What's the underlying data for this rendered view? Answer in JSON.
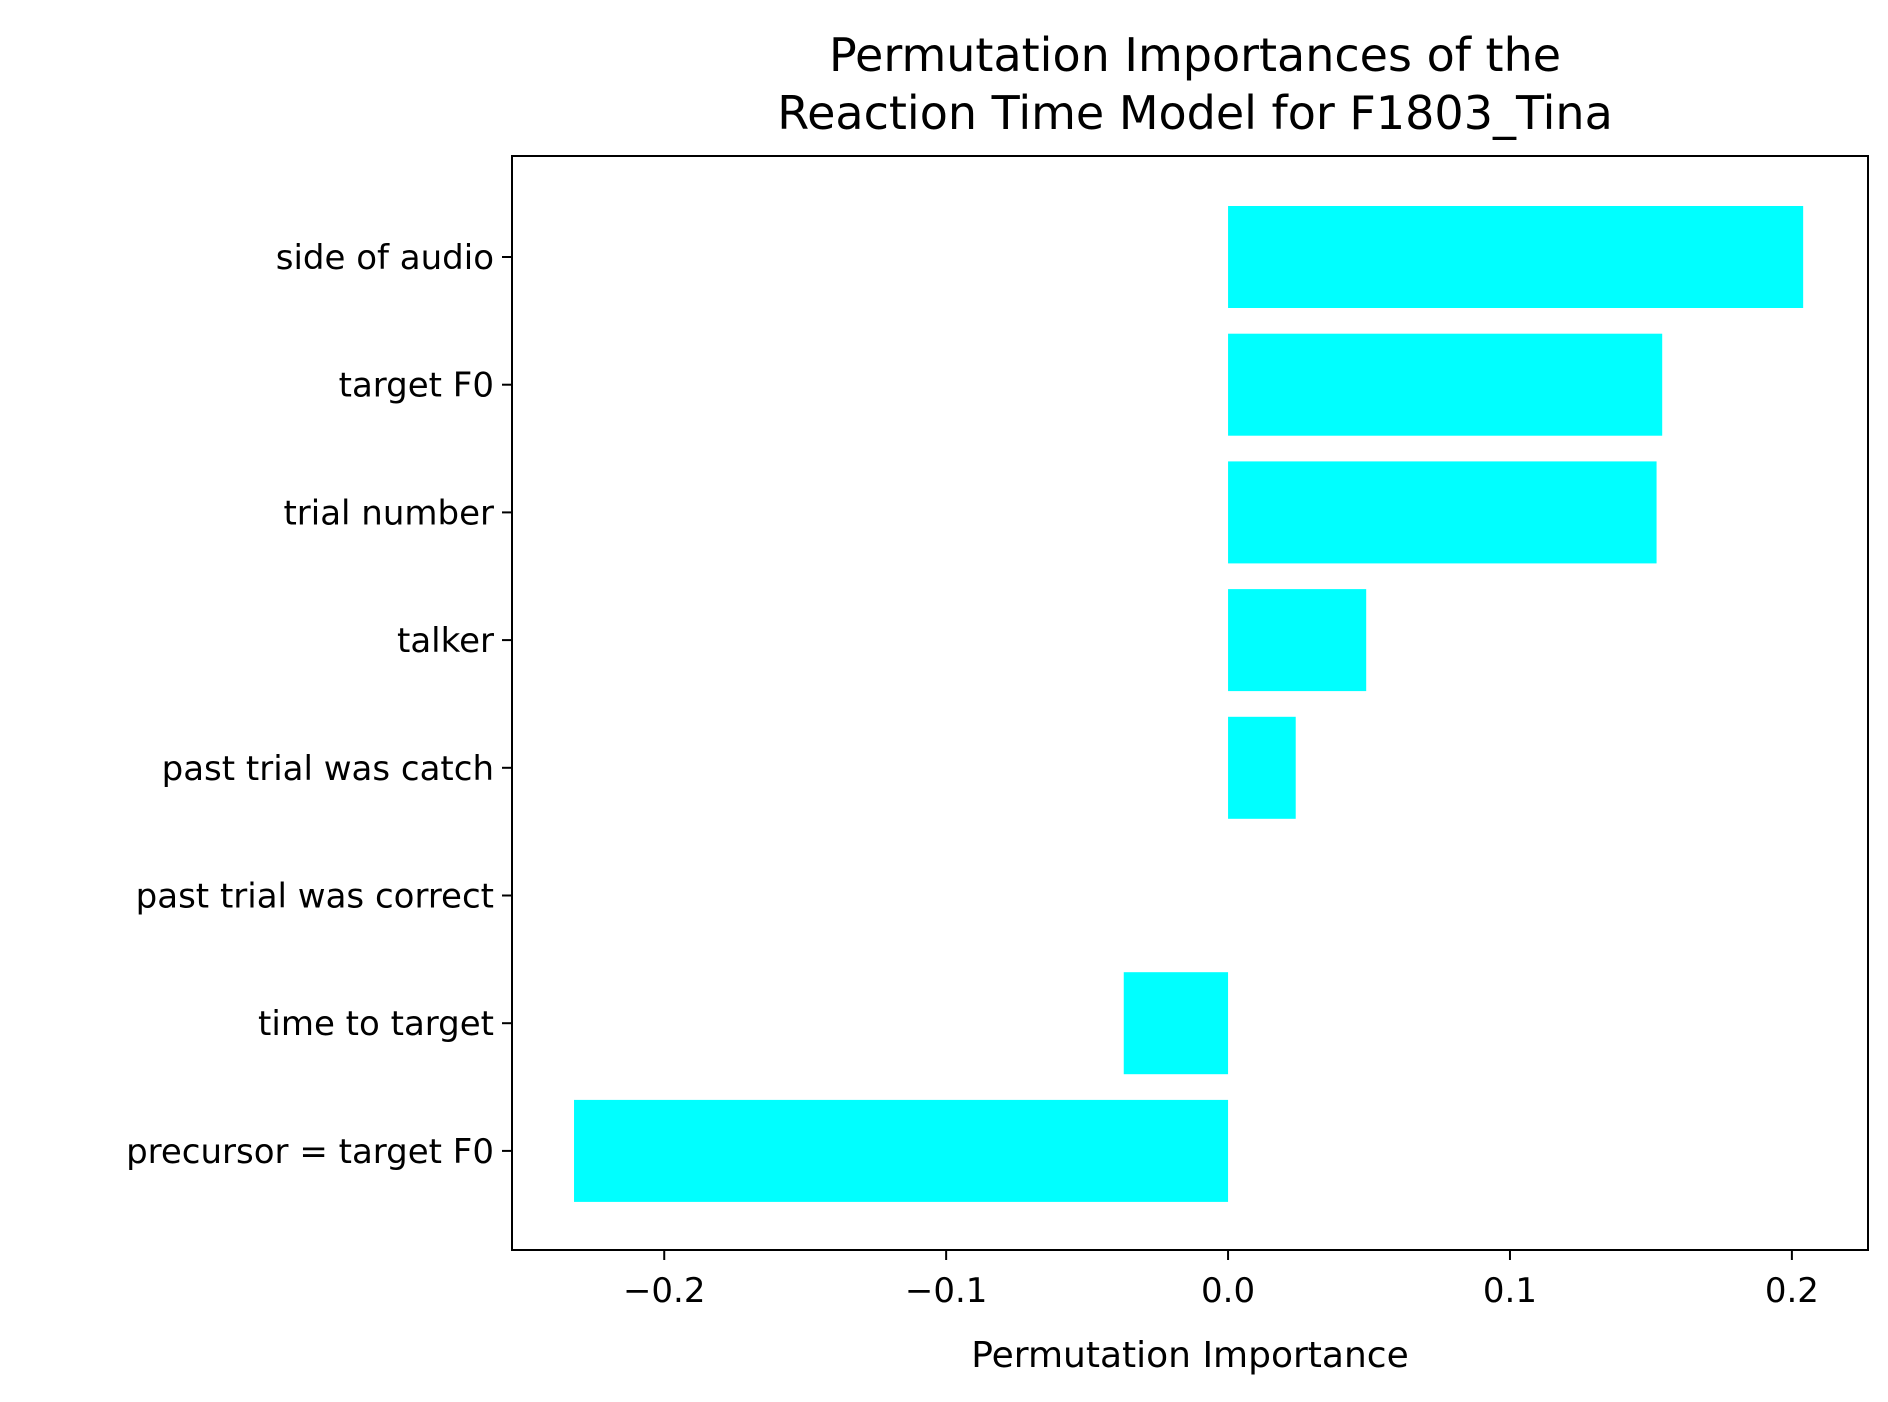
{
  "chart_data": {
    "type": "bar",
    "orientation": "horizontal",
    "title_lines": [
      "Permutation Importances of the",
      "Reaction Time Model for F1803_Tina"
    ],
    "xlabel": "Permutation Importance",
    "ylabel": "",
    "xlim": [
      -0.254,
      0.227
    ],
    "xticks": [
      -0.2,
      -0.1,
      0.0,
      0.1,
      0.2
    ],
    "xtick_labels": [
      "−0.2",
      "−0.1",
      "0.0",
      "0.1",
      "0.2"
    ],
    "categories": [
      "side of audio",
      "target F0",
      "trial number",
      "talker",
      "past trial was catch",
      "past trial was correct",
      "time to target",
      "precursor = target F0"
    ],
    "values": [
      0.204,
      0.154,
      0.152,
      0.049,
      0.024,
      0.0,
      -0.037,
      -0.232
    ],
    "bar_color": "#00ffff",
    "grid": false,
    "legend": "none"
  }
}
